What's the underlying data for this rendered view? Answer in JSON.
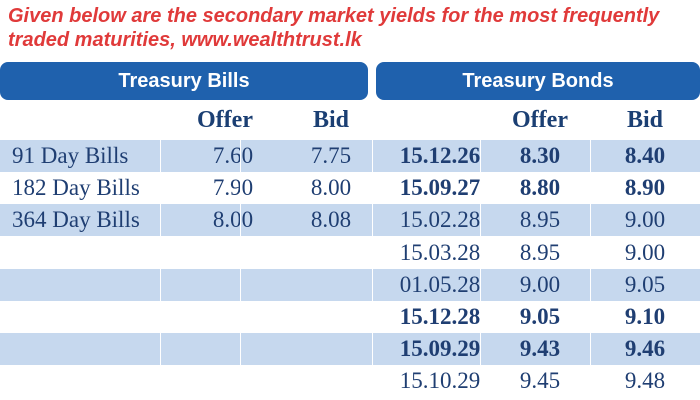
{
  "caption": "Given below are the secondary market yields for the most frequently traded maturities, www.wealthtrust.lk",
  "headers": {
    "bills": "Treasury Bills",
    "bonds": "Treasury Bonds"
  },
  "columns": {
    "bills_offer": "Offer",
    "bills_bid": "Bid",
    "bonds_offer": "Offer",
    "bonds_bid": "Bid"
  },
  "bills": [
    {
      "label": "91 Day Bills",
      "offer": "7.60",
      "bid": "7.75"
    },
    {
      "label": "182 Day Bills",
      "offer": "7.90",
      "bid": "8.00"
    },
    {
      "label": "364 Day Bills",
      "offer": "8.00",
      "bid": "8.08"
    }
  ],
  "bonds": [
    {
      "date": "15.12.26",
      "offer": "8.30",
      "bid": "8.40",
      "bold": true
    },
    {
      "date": "15.09.27",
      "offer": "8.80",
      "bid": "8.90",
      "bold": true
    },
    {
      "date": "15.02.28",
      "offer": "8.95",
      "bid": "9.00",
      "bold": false
    },
    {
      "date": "15.03.28",
      "offer": "8.95",
      "bid": "9.00",
      "bold": false
    },
    {
      "date": "01.05.28",
      "offer": "9.00",
      "bid": "9.05",
      "bold": false
    },
    {
      "date": "15.12.28",
      "offer": "9.05",
      "bid": "9.10",
      "bold": true
    },
    {
      "date": "15.09.29",
      "offer": "9.43",
      "bid": "9.46",
      "bold": true
    },
    {
      "date": "15.10.29",
      "offer": "9.45",
      "bid": "9.48",
      "bold": false
    }
  ],
  "colors": {
    "header_blue": "#1f61ad",
    "row_shade": "#c6d8ee",
    "caption_red": "#e03a3a",
    "text_navy": "#1f3e72"
  }
}
